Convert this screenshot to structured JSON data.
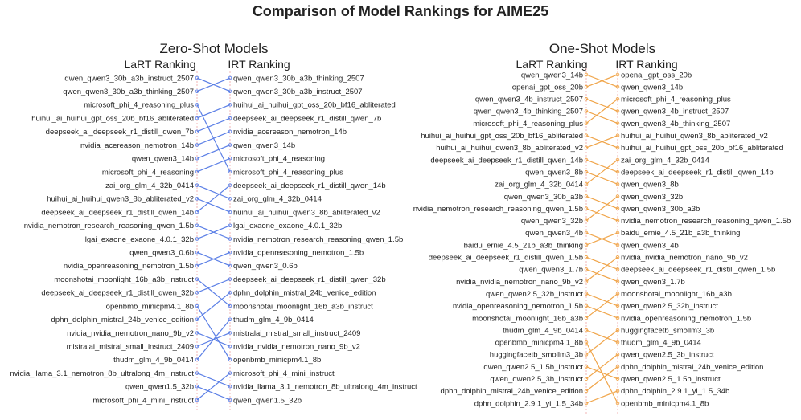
{
  "title": "Comparison of Model Rankings for AIME25",
  "colors": {
    "zero_shot": "#5b7fe6",
    "one_shot": "#f0a54a",
    "guide": "#f2b6b6"
  },
  "chart_data": [
    {
      "type": "slope",
      "panel": "zero_shot",
      "title": "Zero-Shot Models",
      "left_header": "LaRT Ranking",
      "right_header": "IRT Ranking",
      "lart_ranking": [
        "qwen_qwen3_30b_a3b_instruct_2507",
        "qwen_qwen3_30b_a3b_thinking_2507",
        "microsoft_phi_4_reasoning_plus",
        "huihui_ai_huihui_gpt_oss_20b_bf16_abliterated",
        "deepseek_ai_deepseek_r1_distill_qwen_7b",
        "nvidia_acereason_nemotron_14b",
        "qwen_qwen3_14b",
        "microsoft_phi_4_reasoning",
        "zai_org_glm_4_32b_0414",
        "huihui_ai_huihui_qwen3_8b_abliterated_v2",
        "deepseek_ai_deepseek_r1_distill_qwen_14b",
        "nvidia_nemotron_research_reasoning_qwen_1.5b",
        "lgai_exaone_exaone_4.0.1_32b",
        "qwen_qwen3_0.6b",
        "nvidia_openreasoning_nemotron_1.5b",
        "moonshotai_moonlight_16b_a3b_instruct",
        "deepseek_ai_deepseek_r1_distill_qwen_32b",
        "openbmb_minicpm4.1_8b",
        "dphn_dolphin_mistral_24b_venice_edition",
        "nvidia_nvidia_nemotron_nano_9b_v2",
        "mistralai_mistral_small_instruct_2409",
        "thudm_glm_4_9b_0414",
        "nvidia_llama_3.1_nemotron_8b_ultralong_4m_instruct",
        "qwen_qwen1.5_32b",
        "microsoft_phi_4_mini_instruct"
      ],
      "irt_ranking": [
        "qwen_qwen3_30b_a3b_thinking_2507",
        "qwen_qwen3_30b_a3b_instruct_2507",
        "huihui_ai_huihui_gpt_oss_20b_bf16_abliterated",
        "deepseek_ai_deepseek_r1_distill_qwen_7b",
        "nvidia_acereason_nemotron_14b",
        "qwen_qwen3_14b",
        "microsoft_phi_4_reasoning",
        "microsoft_phi_4_reasoning_plus",
        "deepseek_ai_deepseek_r1_distill_qwen_14b",
        "zai_org_glm_4_32b_0414",
        "huihui_ai_huihui_qwen3_8b_abliterated_v2",
        "lgai_exaone_exaone_4.0.1_32b",
        "nvidia_nemotron_research_reasoning_qwen_1.5b",
        "nvidia_openreasoning_nemotron_1.5b",
        "qwen_qwen3_0.6b",
        "deepseek_ai_deepseek_r1_distill_qwen_32b",
        "dphn_dolphin_mistral_24b_venice_edition",
        "moonshotai_moonlight_16b_a3b_instruct",
        "thudm_glm_4_9b_0414",
        "mistralai_mistral_small_instruct_2409",
        "nvidia_nvidia_nemotron_nano_9b_v2",
        "openbmb_minicpm4.1_8b",
        "microsoft_phi_4_mini_instruct",
        "nvidia_llama_3.1_nemotron_8b_ultralong_4m_instruct",
        "qwen_qwen1.5_32b"
      ]
    },
    {
      "type": "slope",
      "panel": "one_shot",
      "title": "One-Shot Models",
      "left_header": "LaRT Ranking",
      "right_header": "IRT Ranking",
      "lart_ranking": [
        "qwen_qwen3_14b",
        "openai_gpt_oss_20b",
        "qwen_qwen3_4b_instruct_2507",
        "qwen_qwen3_4b_thinking_2507",
        "microsoft_phi_4_reasoning_plus",
        "huihui_ai_huihui_gpt_oss_20b_bf16_abliterated",
        "huihui_ai_huihui_qwen3_8b_abliterated_v2",
        "deepseek_ai_deepseek_r1_distill_qwen_14b",
        "qwen_qwen3_8b",
        "zai_org_glm_4_32b_0414",
        "qwen_qwen3_30b_a3b",
        "nvidia_nemotron_research_reasoning_qwen_1.5b",
        "qwen_qwen3_32b",
        "qwen_qwen3_4b",
        "baidu_ernie_4.5_21b_a3b_thinking",
        "deepseek_ai_deepseek_r1_distill_qwen_1.5b",
        "qwen_qwen3_1.7b",
        "nvidia_nvidia_nemotron_nano_9b_v2",
        "qwen_qwen2.5_32b_instruct",
        "nvidia_openreasoning_nemotron_1.5b",
        "moonshotai_moonlight_16b_a3b",
        "thudm_glm_4_9b_0414",
        "openbmb_minicpm4.1_8b",
        "huggingfacetb_smollm3_3b",
        "qwen_qwen2.5_1.5b_instruct",
        "qwen_qwen2.5_3b_instruct",
        "dphn_dolphin_mistral_24b_venice_edition",
        "dphn_dolphin_2.9.1_yi_1.5_34b"
      ],
      "irt_ranking": [
        "openai_gpt_oss_20b",
        "qwen_qwen3_14b",
        "microsoft_phi_4_reasoning_plus",
        "qwen_qwen3_4b_instruct_2507",
        "qwen_qwen3_4b_thinking_2507",
        "huihui_ai_huihui_qwen3_8b_abliterated_v2",
        "huihui_ai_huihui_gpt_oss_20b_bf16_abliterated",
        "zai_org_glm_4_32b_0414",
        "deepseek_ai_deepseek_r1_distill_qwen_14b",
        "qwen_qwen3_8b",
        "qwen_qwen3_32b",
        "qwen_qwen3_30b_a3b",
        "nvidia_nemotron_research_reasoning_qwen_1.5b",
        "baidu_ernie_4.5_21b_a3b_thinking",
        "qwen_qwen3_4b",
        "nvidia_nvidia_nemotron_nano_9b_v2",
        "deepseek_ai_deepseek_r1_distill_qwen_1.5b",
        "qwen_qwen3_1.7b",
        "moonshotai_moonlight_16b_a3b",
        "qwen_qwen2.5_32b_instruct",
        "nvidia_openreasoning_nemotron_1.5b",
        "huggingfacetb_smollm3_3b",
        "thudm_glm_4_9b_0414",
        "qwen_qwen2.5_3b_instruct",
        "dphn_dolphin_mistral_24b_venice_edition",
        "qwen_qwen2.5_1.5b_instruct",
        "dphn_dolphin_2.9.1_yi_1.5_34b",
        "openbmb_minicpm4.1_8b"
      ]
    }
  ]
}
